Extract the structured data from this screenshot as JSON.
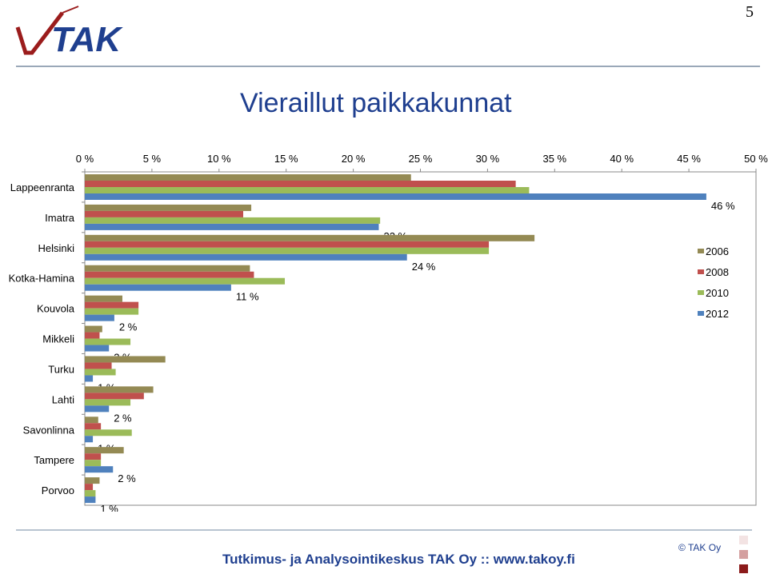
{
  "page": {
    "number": "5"
  },
  "logo": {
    "text": "TAK",
    "colors": {
      "text": "#1f3f8f",
      "check": "#9b1c1c"
    }
  },
  "title": "Vieraillut paikkakunnat",
  "footer": {
    "text": "Tutkimus- ja Analysointikeskus TAK Oy   ::   www.takoy.fi",
    "copyright": "© TAK Oy"
  },
  "colors": {
    "title": "#1f3f8f",
    "squares": [
      "#f3e3e3",
      "#d4a0a0",
      "#8b1a1a"
    ]
  },
  "chart_data": {
    "type": "bar",
    "orientation": "horizontal",
    "categories": [
      "Lappeenranta",
      "Imatra",
      "Helsinki",
      "Kotka-Hamina",
      "Kouvola",
      "Mikkeli",
      "Turku",
      "Lahti",
      "Savonlinna",
      "Tampere",
      "Porvoo"
    ],
    "series": [
      {
        "name": "2006",
        "color": "#948a54",
        "values": [
          24.3,
          12.4,
          33.5,
          12.3,
          2.8,
          1.3,
          6.0,
          5.1,
          1.0,
          2.9,
          1.1
        ]
      },
      {
        "name": "2008",
        "color": "#c0504d",
        "values": [
          32.1,
          11.8,
          30.1,
          12.6,
          4.0,
          1.1,
          2.0,
          4.4,
          1.2,
          1.2,
          0.6
        ]
      },
      {
        "name": "2010",
        "color": "#9bbb59",
        "values": [
          33.1,
          22.0,
          30.1,
          14.9,
          4.0,
          3.4,
          2.3,
          3.4,
          3.5,
          1.2,
          0.8
        ]
      },
      {
        "name": "2012",
        "color": "#4f81bd",
        "values": [
          46.3,
          21.9,
          24.0,
          10.9,
          2.2,
          1.8,
          0.6,
          1.8,
          0.6,
          2.1,
          0.8
        ]
      }
    ],
    "data_labels": [
      "46 %",
      "22 %",
      "24 %",
      "11 %",
      "2 %",
      "2 %",
      "1 %",
      "2 %",
      "1 %",
      "2 %",
      "1 %"
    ],
    "xticks": [
      "0 %",
      "5 %",
      "10 %",
      "15 %",
      "20 %",
      "25 %",
      "30 %",
      "35 %",
      "40 %",
      "45 %",
      "50 %"
    ],
    "xlim": [
      0,
      50
    ],
    "xaxis_position": "top",
    "grid": false,
    "legend_position": "right",
    "legend_order": [
      "2006",
      "2008",
      "2010",
      "2012"
    ]
  }
}
